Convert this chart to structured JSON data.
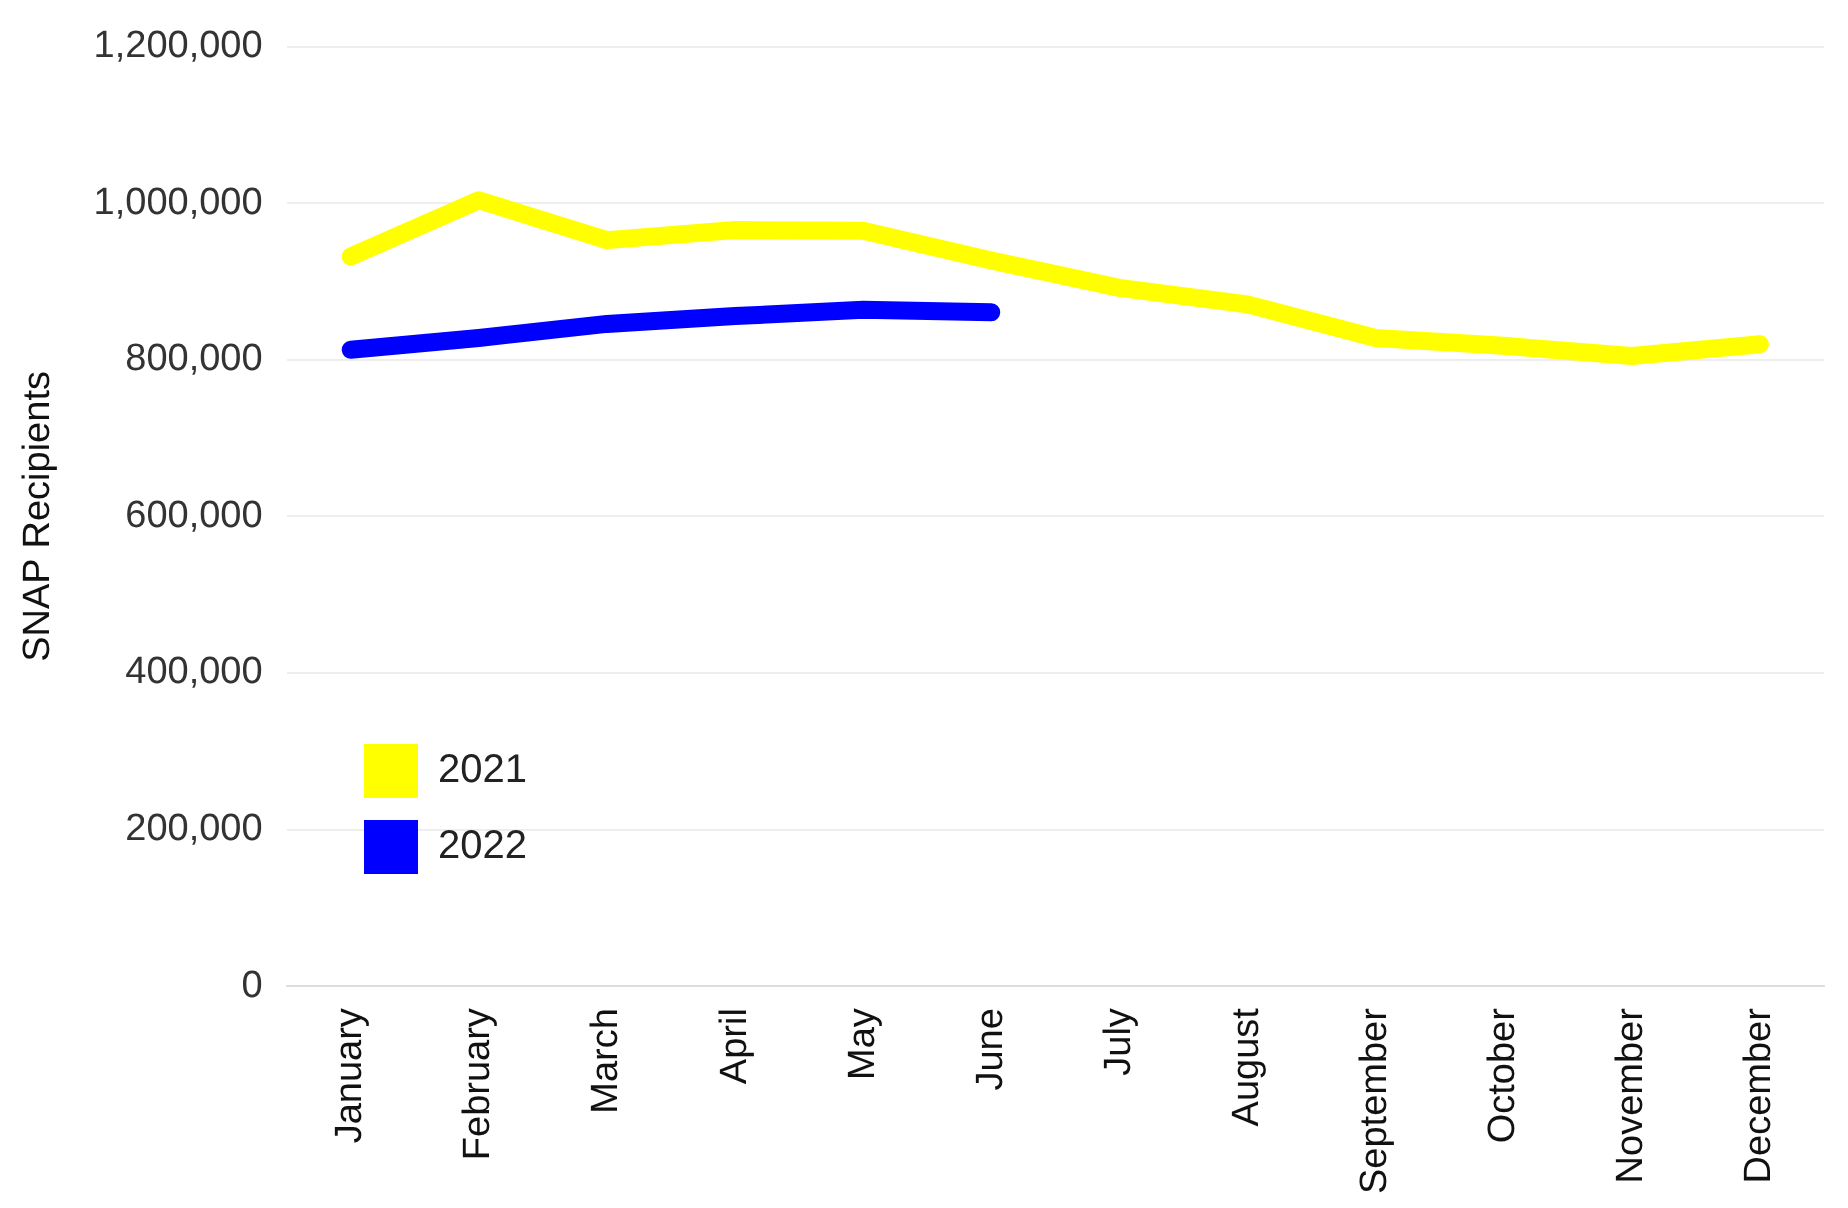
{
  "chart_data": {
    "type": "line",
    "ylabel": "SNAP Recipients",
    "categories": [
      "January",
      "February",
      "March",
      "April",
      "May",
      "June",
      "July",
      "August",
      "September",
      "October",
      "November",
      "December"
    ],
    "series": [
      {
        "name": "2021",
        "color": "#ffff00",
        "values": [
          932000,
          1004000,
          953000,
          966000,
          965000,
          927000,
          892000,
          871000,
          828000,
          818000,
          805000,
          820000
        ]
      },
      {
        "name": "2022",
        "color": "#0000ff",
        "values": [
          813000,
          828000,
          846000,
          856000,
          864000,
          861000,
          null,
          null,
          null,
          null,
          null,
          null
        ]
      }
    ],
    "ylim": [
      0,
      1200000
    ],
    "yticks": [
      0,
      {
        "value": 200000,
        "label": "200,000"
      },
      {
        "value": 400000,
        "label": "400,000"
      },
      {
        "value": 600000,
        "label": "600,000"
      },
      {
        "value": 800000,
        "label": "800,000"
      },
      {
        "value": 1000000,
        "label": "1,000,000"
      },
      {
        "value": 1200000,
        "label": "1,200,000"
      }
    ],
    "grid": "y",
    "legend": "bottom left",
    "marker": "none",
    "line_style": "solid"
  }
}
